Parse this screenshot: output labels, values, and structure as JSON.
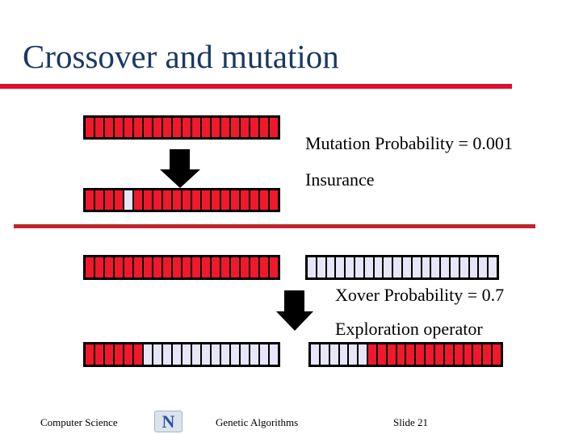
{
  "slide": {
    "title": "Crossover and mutation"
  },
  "colors": {
    "title_text": "#1B3864",
    "title_underline": "#E00E2F",
    "divider": "#C3242B",
    "gene_red": "#F0182B",
    "gene_lavender": "#E6E6F8",
    "gene_border": "#000000",
    "arrow": "#000000",
    "label_text": "#000000",
    "logo_blue": "#2A54A6",
    "logo_bg": "#DDE3EC"
  },
  "mutation_section": {
    "probability_label": "Mutation Probability = 0.001",
    "note_label": "Insurance",
    "segment_count": 20,
    "parent_pattern": "RRRRRRRRRRRRRRRRRRRR",
    "child_pattern": "RRRRLRRRRRRRRRRRRRRR"
  },
  "crossover_section": {
    "probability_label": "Xover Probability = 0.7",
    "note_label": "Exploration operator",
    "segment_count": 20,
    "parent1_pattern": "RRRRRRRRRRRRRRRRRRRR",
    "parent2_pattern": "LLLLLLLLLLLLLLLLLLLL",
    "child1_pattern": "RRRRRRLLLLLLLLLLLLLL",
    "child2_pattern": "LLLLLLRRRRRRRRRRRRRR"
  },
  "footer": {
    "department": "Computer Science",
    "logo_letter": "N",
    "course": "Genetic Algorithms",
    "slide_label": "Slide 21"
  }
}
